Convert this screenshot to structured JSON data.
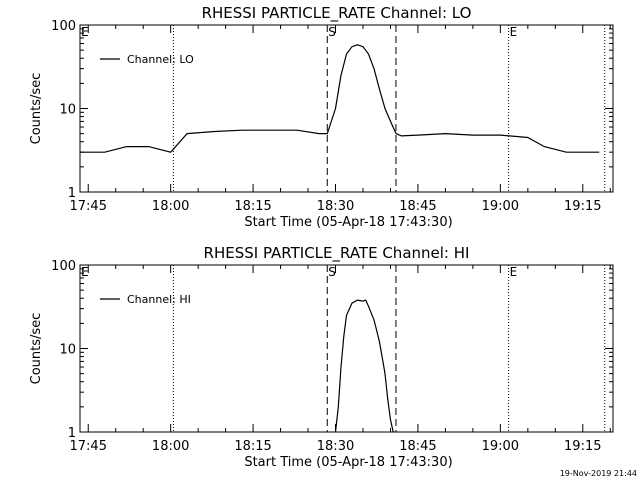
{
  "chart_data": [
    {
      "type": "line",
      "title": "RHESSI PARTICLE_RATE Channel: LO",
      "xlabel": "Start Time (05-Apr-18 17:43:30)",
      "ylabel": "Counts/sec",
      "yscale": "log",
      "ylim": [
        1,
        100
      ],
      "xlim": [
        "17:43:30",
        "19:20:30"
      ],
      "xticks": [
        "17:45",
        "18:00",
        "18:15",
        "18:30",
        "18:45",
        "19:00",
        "19:15"
      ],
      "yticks": [
        "1",
        "10",
        "100"
      ],
      "legend": "top-left",
      "grid": false,
      "series": [
        {
          "name": "Channel: LO",
          "x": [
            "17:43:30",
            "17:48:00",
            "17:52:00",
            "17:56:00",
            "18:00:00",
            "18:03:00",
            "18:08:00",
            "18:13:00",
            "18:18:00",
            "18:23:00",
            "18:27:00",
            "18:28:30",
            "18:30:00",
            "18:31:00",
            "18:32:00",
            "18:33:00",
            "18:34:00",
            "18:35:00",
            "18:36:00",
            "18:37:00",
            "18:38:00",
            "18:39:00",
            "18:40:00",
            "18:41:00",
            "18:42:00",
            "18:45:00",
            "18:50:00",
            "18:55:00",
            "19:00:00",
            "19:05:00",
            "19:08:00",
            "19:12:00",
            "19:14:30",
            "19:16:00",
            "19:18:00"
          ],
          "y": [
            3,
            3,
            3.5,
            3.5,
            3,
            5,
            5.3,
            5.5,
            5.5,
            5.5,
            5,
            5,
            10,
            25,
            45,
            55,
            58,
            55,
            45,
            30,
            17,
            10,
            7,
            5,
            4.7,
            4.8,
            5,
            4.8,
            4.8,
            4.5,
            3.5,
            3,
            3,
            3,
            3
          ]
        }
      ],
      "vlines_dotted": [
        "18:00:30",
        "19:01:30",
        "19:19:00"
      ],
      "vlines_dashed": [
        "18:28:30",
        "18:41:00"
      ],
      "markers": [
        {
          "label": "E",
          "x": "17:43:30"
        },
        {
          "label": "S",
          "x": "18:28:30"
        },
        {
          "label": "E",
          "x": "19:01:30"
        }
      ]
    },
    {
      "type": "line",
      "title": "RHESSI PARTICLE_RATE Channel: HI",
      "xlabel": "Start Time (05-Apr-18 17:43:30)",
      "ylabel": "Counts/sec",
      "yscale": "log",
      "ylim": [
        1,
        100
      ],
      "xlim": [
        "17:43:30",
        "19:20:30"
      ],
      "xticks": [
        "17:45",
        "18:00",
        "18:15",
        "18:30",
        "18:45",
        "19:00",
        "19:15"
      ],
      "yticks": [
        "1",
        "10",
        "100"
      ],
      "legend": "top-left",
      "grid": false,
      "series": [
        {
          "name": "Channel: HI",
          "x": [
            "18:30:00",
            "18:30:30",
            "18:31:00",
            "18:31:30",
            "18:32:00",
            "18:33:00",
            "18:34:00",
            "18:35:00",
            "18:35:30",
            "18:36:00",
            "18:37:00",
            "18:38:00",
            "18:39:00",
            "18:39:30",
            "18:40:00",
            "18:40:30"
          ],
          "y": [
            1,
            2,
            6,
            14,
            25,
            35,
            38,
            37,
            38,
            32,
            22,
            12,
            5,
            2.5,
            1.4,
            1
          ]
        }
      ],
      "vlines_dotted": [
        "18:00:30",
        "19:01:30",
        "19:19:00"
      ],
      "vlines_dashed": [
        "18:28:30",
        "18:41:00"
      ],
      "markers": [
        {
          "label": "E",
          "x": "17:43:30"
        },
        {
          "label": "S",
          "x": "18:28:30"
        },
        {
          "label": "E",
          "x": "19:01:30"
        }
      ]
    }
  ],
  "footer": {
    "timestamp": "19-Nov-2019 21:44"
  }
}
